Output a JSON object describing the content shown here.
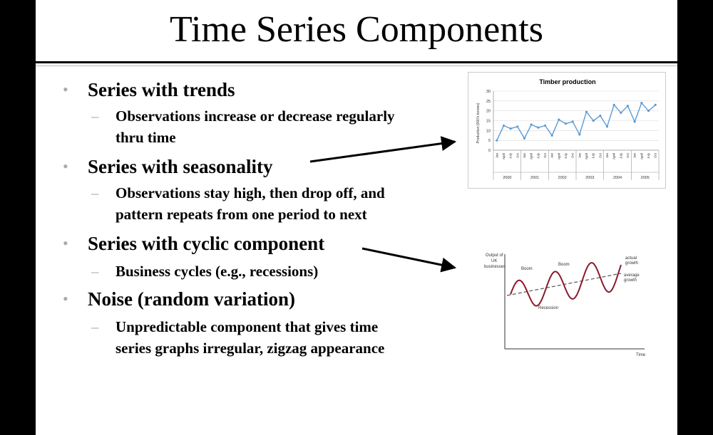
{
  "slide": {
    "title": "Time Series Components",
    "bullets": [
      {
        "text": "Series with trends",
        "subs": [
          "Observations increase or decrease regularly",
          "thru time"
        ]
      },
      {
        "text": "Series with seasonality",
        "subs": [
          "Observations stay high, then drop off, and",
          "pattern repeats from one period to next"
        ]
      },
      {
        "text": "Series with cyclic component",
        "subs": [
          "Business cycles (e.g., recessions)"
        ]
      },
      {
        "text": "Noise (random variation)",
        "subs": [
          "Unpredictable component that gives time",
          "series graphs irregular, zigzag appearance"
        ]
      }
    ],
    "bullet_glyph": "•",
    "dash_glyph": "–"
  },
  "chart_data": [
    {
      "type": "line",
      "title": "Timber production",
      "ylabel": "Production (000's tonnes)",
      "ylim": [
        0,
        30
      ],
      "yticks": [
        "0",
        "5",
        "10",
        "15",
        "20",
        "25",
        "30"
      ],
      "month_labels": [
        "Jan",
        "April",
        "July",
        "Oct"
      ],
      "years": [
        "2000",
        "2001",
        "2002",
        "2003",
        "2004",
        "2005"
      ],
      "values": [
        5,
        12.5,
        11,
        12,
        6,
        13,
        11.5,
        12.5,
        7.5,
        15.5,
        13.5,
        14.5,
        8,
        19.5,
        15,
        17.5,
        12,
        23,
        19,
        22.5,
        14.5,
        24,
        20,
        23
      ],
      "grid": true,
      "line_color": "#5b9bd5"
    },
    {
      "type": "line",
      "title": "",
      "ylabel": "Output of UK businesses",
      "xlabel": "Time",
      "annotations": [
        "Boom",
        "Boom",
        "Recession",
        "actual growth",
        "average growth"
      ],
      "series": [
        {
          "name": "actual growth",
          "style": "solid",
          "color": "#8b1a2b"
        },
        {
          "name": "average growth",
          "style": "dashed",
          "color": "#555555"
        }
      ]
    }
  ]
}
